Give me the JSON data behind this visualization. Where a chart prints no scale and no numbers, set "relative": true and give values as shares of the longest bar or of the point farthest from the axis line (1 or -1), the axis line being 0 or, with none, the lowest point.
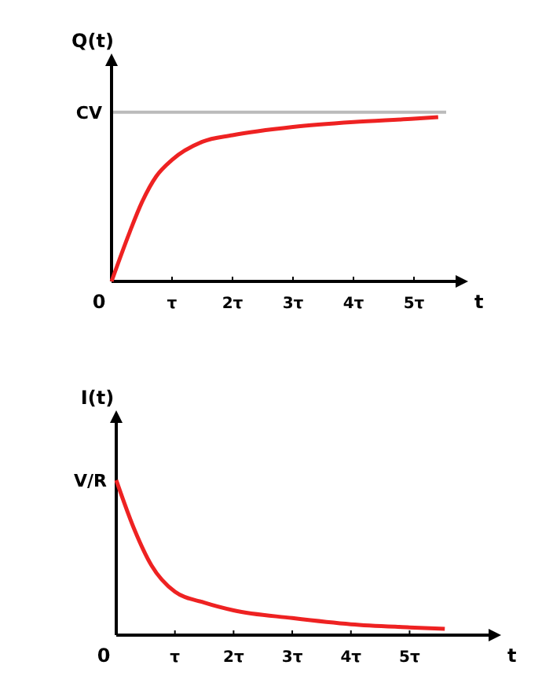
{
  "chart_data": [
    {
      "type": "line",
      "relative": true,
      "ylabel": "Q(t)",
      "xlabel": "t",
      "x": [
        0,
        0.3,
        0.5,
        0.74,
        1,
        1.5,
        2,
        3,
        4,
        5,
        5.4
      ],
      "series": [
        {
          "color": "#ee2222",
          "values": [
            0,
            0.3,
            0.48,
            0.64,
            0.74,
            0.85,
            0.89,
            0.94,
            0.97,
            0.99,
            1
          ]
        }
      ],
      "xlim": [
        0,
        5.74
      ],
      "xticks": [
        {
          "value": 0,
          "label": "0"
        },
        {
          "value": 1,
          "label": "τ"
        },
        {
          "value": 2,
          "label": "2τ"
        },
        {
          "value": 3,
          "label": "3τ"
        },
        {
          "value": 4,
          "label": "4τ"
        },
        {
          "value": 5,
          "label": "5τ"
        }
      ],
      "annotations": [
        {
          "text": "CV",
          "x": 0,
          "y": 1.03
        }
      ],
      "ref_lines": [
        {
          "axis": "y",
          "value": 1.03,
          "color": "#bbbbbb"
        }
      ],
      "grid": false,
      "marker": "none",
      "line_style": "solid"
    },
    {
      "type": "line",
      "relative": true,
      "ylabel": "I(t)",
      "xlabel": "t",
      "x": [
        0,
        0.3,
        0.6,
        1,
        1.5,
        2,
        3,
        4,
        5,
        5.6
      ],
      "series": [
        {
          "color": "#ee2222",
          "values": [
            1,
            0.69,
            0.45,
            0.28,
            0.21,
            0.16,
            0.11,
            0.07,
            0.05,
            0.04
          ]
        }
      ],
      "xlim": [
        0,
        6.4
      ],
      "xticks": [
        {
          "value": 0,
          "label": "0"
        },
        {
          "value": 1,
          "label": "τ"
        },
        {
          "value": 2,
          "label": "2τ"
        },
        {
          "value": 3,
          "label": "3τ"
        },
        {
          "value": 4,
          "label": "4τ"
        },
        {
          "value": 5,
          "label": "5τ"
        }
      ],
      "annotations": [
        {
          "text": "V/R",
          "x": 0,
          "y": 1
        }
      ],
      "grid": false,
      "marker": "none",
      "line_style": "solid"
    }
  ]
}
